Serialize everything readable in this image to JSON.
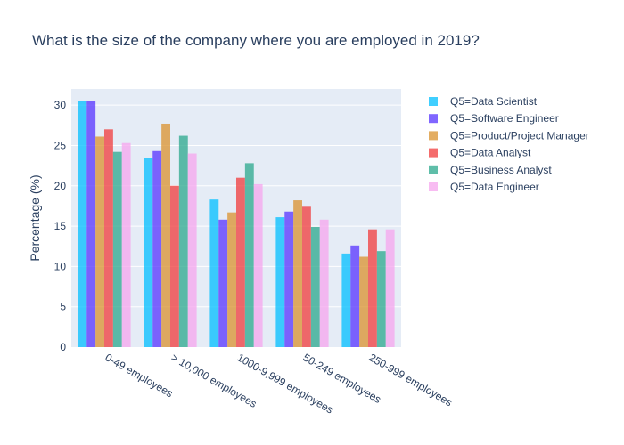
{
  "chart_data": {
    "type": "bar",
    "title": "What is the size of the company where you are employed in 2019?",
    "xlabel": "",
    "ylabel": "Percentage (%)",
    "ylim": [
      0,
      32
    ],
    "yticks": [
      0,
      5,
      10,
      15,
      20,
      25,
      30
    ],
    "grid": true,
    "legend_position": "right",
    "categories": [
      "0-49 employees",
      "> 10,000 employees",
      "1000-9,999 employees",
      "50-249 employees",
      "250-999 employees"
    ],
    "series": [
      {
        "name": "Q5=Data Scientist",
        "color": "#00bfff",
        "values": [
          30.5,
          23.4,
          18.3,
          16.1,
          11.6
        ]
      },
      {
        "name": "Q5=Software Engineer",
        "color": "#5533ff",
        "values": [
          30.5,
          24.3,
          15.8,
          16.8,
          12.6
        ]
      },
      {
        "name": "Q5=Product/Project Manager",
        "color": "#d9922e",
        "values": [
          26.1,
          27.7,
          16.7,
          18.2,
          11.2
        ]
      },
      {
        "name": "Q5=Data Analyst",
        "color": "#f03b3b",
        "values": [
          27.0,
          20.0,
          21.0,
          17.4,
          14.6
        ]
      },
      {
        "name": "Q5=Business Analyst",
        "color": "#2aa88c",
        "values": [
          24.2,
          26.2,
          22.8,
          14.9,
          11.9
        ]
      },
      {
        "name": "Q5=Data Engineer",
        "color": "#f5a6ee",
        "values": [
          25.3,
          24.0,
          20.2,
          15.8,
          14.6
        ]
      }
    ]
  }
}
